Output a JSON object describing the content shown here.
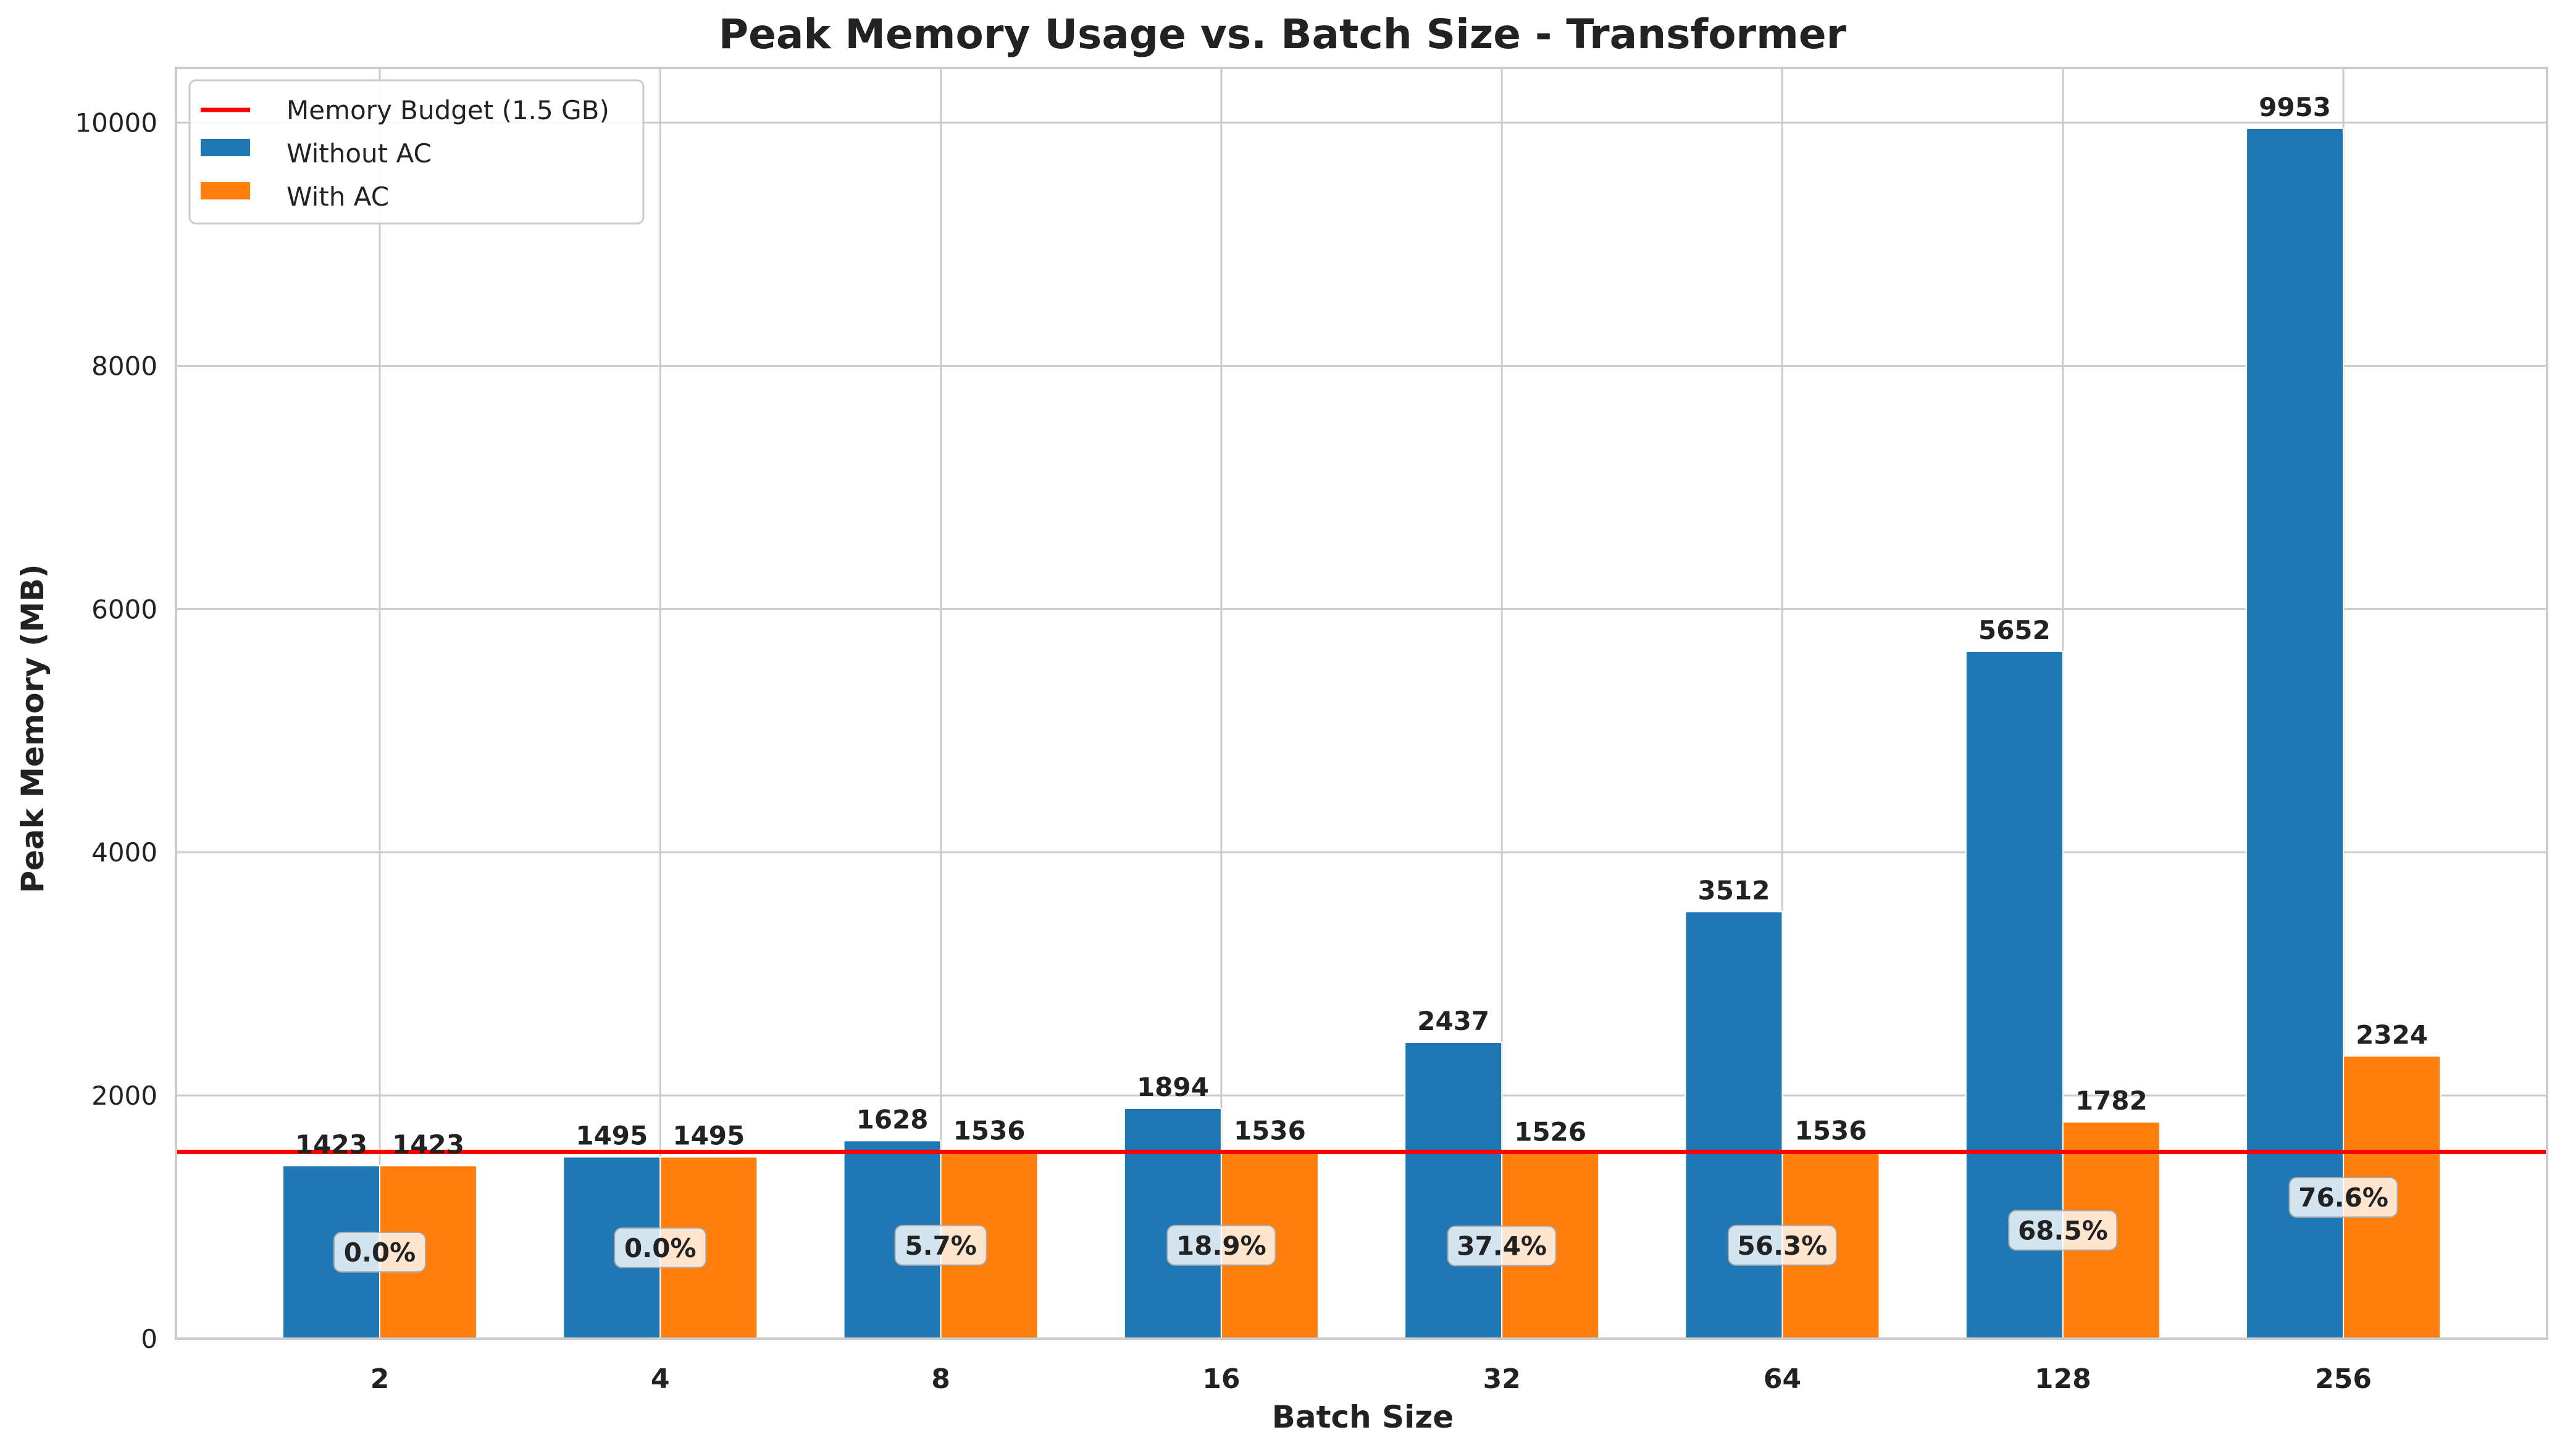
{
  "chart_data": {
    "type": "bar",
    "title": "Peak Memory Usage vs. Batch Size - Transformer",
    "xlabel": "Batch Size",
    "ylabel": "Peak Memory (MB)",
    "categories": [
      "2",
      "4",
      "8",
      "16",
      "32",
      "64",
      "128",
      "256"
    ],
    "series": [
      {
        "name": "Without AC",
        "color": "#1f77b4",
        "values": [
          1423,
          1495,
          1628,
          1894,
          2437,
          3512,
          5652,
          9953
        ]
      },
      {
        "name": "With AC",
        "color": "#ff7f0e",
        "values": [
          1423,
          1495,
          1536,
          1536,
          1526,
          1536,
          1782,
          2324
        ]
      }
    ],
    "value_labels": {
      "without_ac": [
        "1423",
        "1495",
        "1628",
        "1894",
        "2437",
        "3512",
        "5652",
        "9953"
      ],
      "with_ac": [
        "1423",
        "1495",
        "1536",
        "1536",
        "1526",
        "1536",
        "1782",
        "2324"
      ]
    },
    "reduction_percent": [
      0.0,
      0.0,
      5.7,
      18.9,
      37.4,
      56.3,
      68.5,
      76.6
    ],
    "reduction_labels": [
      "0.0%",
      "0.0%",
      "5.7%",
      "18.9%",
      "37.4%",
      "56.3%",
      "68.5%",
      "76.6%"
    ],
    "budget_line": {
      "name": "Memory Budget (1.5 GB)",
      "value": 1536,
      "color": "#ff0000"
    },
    "legend": {
      "position": "top-left",
      "items": [
        "Memory Budget (1.5 GB)",
        "Without AC",
        "With AC"
      ]
    },
    "y_ticks": [
      "0",
      "2000",
      "4000",
      "6000",
      "8000",
      "10000"
    ],
    "ylim": [
      0,
      10450
    ],
    "grid": true
  }
}
